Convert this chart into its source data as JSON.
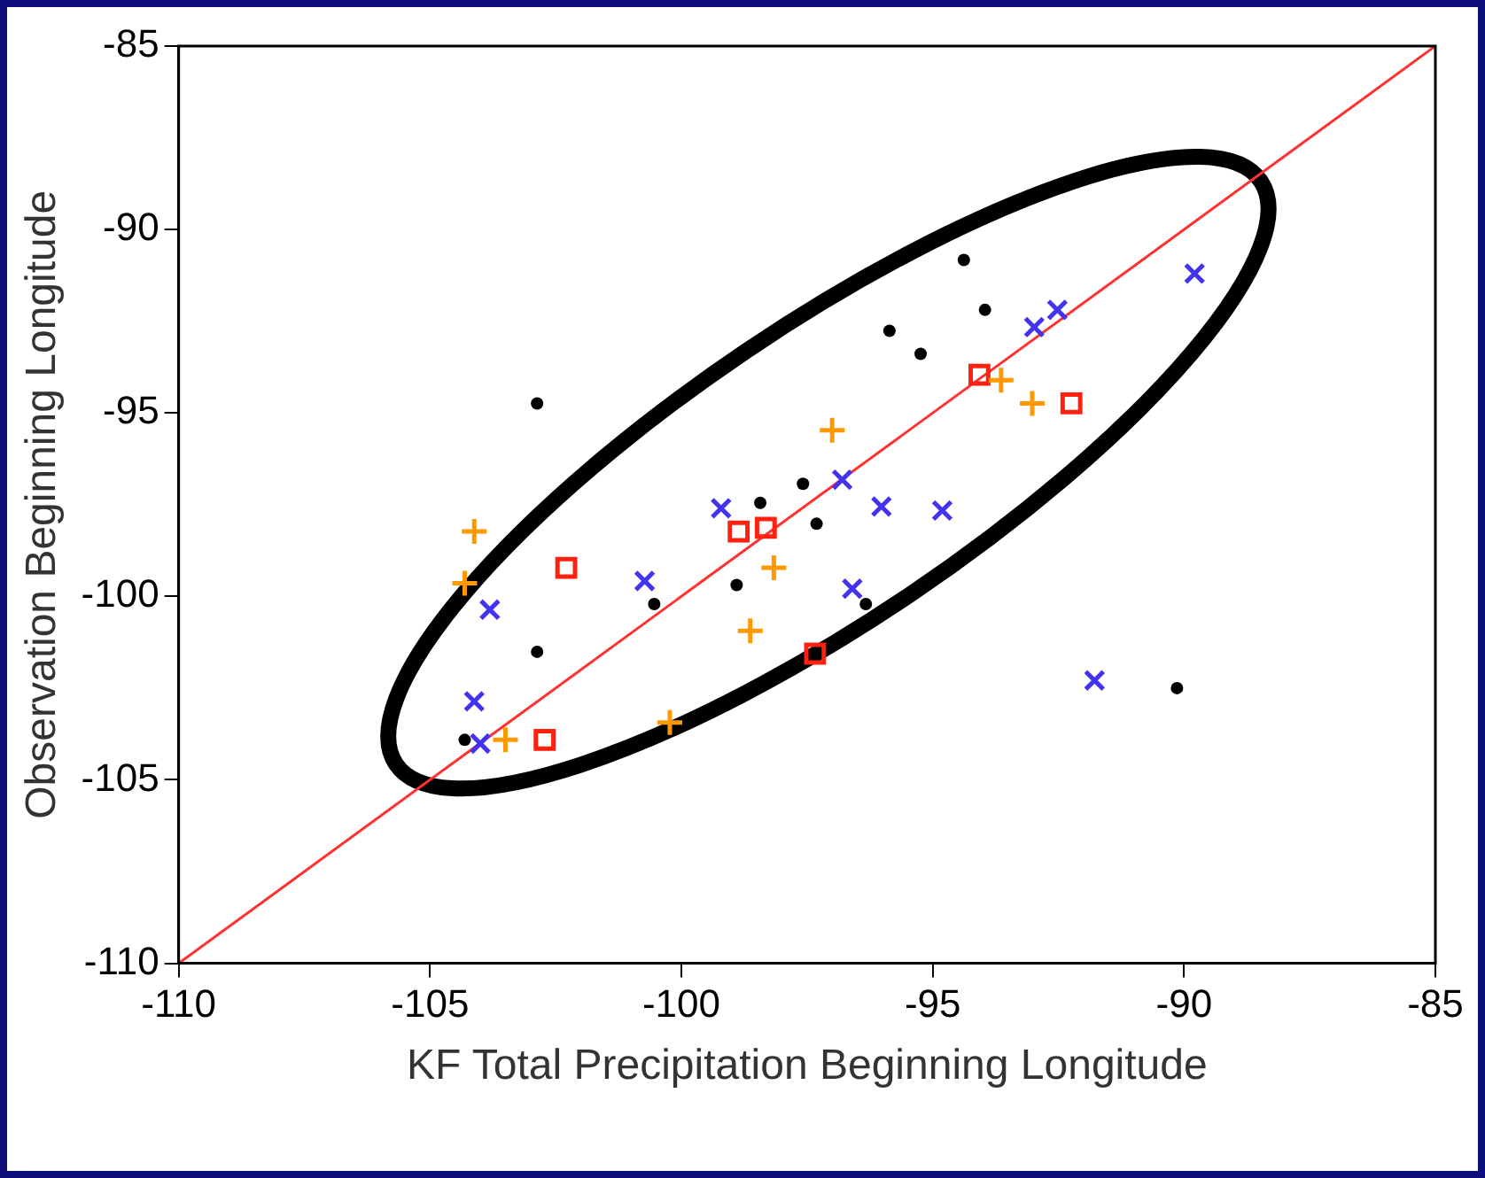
{
  "chart_data": {
    "type": "scatter",
    "xlabel": "KF Total Precipitation Beginning Longitude",
    "ylabel": "Observation Beginning Longitude",
    "xlim": [
      -110,
      -85
    ],
    "ylim": [
      -110,
      -85
    ],
    "xticks": [
      -110,
      -105,
      -100,
      -95,
      -90,
      -85
    ],
    "yticks": [
      -110,
      -105,
      -100,
      -95,
      -90,
      -85
    ],
    "grid": false,
    "legend": false,
    "series": [
      {
        "type": "line",
        "color": "#ff3030",
        "marker": "none",
        "line_style": "solid",
        "x": [
          -110,
          -85
        ],
        "values": [
          -110,
          -85
        ]
      },
      {
        "color": "#000000",
        "marker": "circle",
        "x": [
          -102.87,
          -94.38,
          -93.96,
          -95.86,
          -95.24,
          -97.58,
          -98.43,
          -97.31,
          -98.9,
          -100.54,
          -96.33,
          -102.87,
          -104.31,
          -90.14
        ],
        "values": [
          -94.74,
          -90.83,
          -92.19,
          -92.76,
          -93.39,
          -96.93,
          -97.45,
          -98.02,
          -99.69,
          -100.21,
          -100.21,
          -101.51,
          -103.91,
          -102.5
        ]
      },
      {
        "color": "#4433ee",
        "marker": "cross",
        "x": [
          -99.21,
          -96.8,
          -96.02,
          -94.81,
          -100.73,
          -103.81,
          -96.6,
          -104.12,
          -104.0,
          -89.79,
          -92.52,
          -92.98,
          -91.78
        ],
        "values": [
          -97.6,
          -96.82,
          -97.55,
          -97.66,
          -99.58,
          -100.36,
          -99.79,
          -102.86,
          -104.01,
          -91.2,
          -92.19,
          -92.66,
          -102.29
        ]
      },
      {
        "color": "#ff9900",
        "marker": "plus",
        "x": [
          -97.0,
          -104.12,
          -104.31,
          -98.16,
          -98.63,
          -100.23,
          -103.5,
          -93.64,
          -93.02
        ],
        "values": [
          -95.47,
          -98.23,
          -99.64,
          -99.22,
          -100.94,
          -103.44,
          -103.91,
          -94.11,
          -94.74
        ]
      },
      {
        "color": "#ff2010",
        "marker": "square",
        "x": [
          -102.29,
          -98.86,
          -98.32,
          -97.34,
          -102.72,
          -94.07,
          -92.24
        ],
        "values": [
          -99.22,
          -98.23,
          -98.13,
          -101.56,
          -103.91,
          -93.96,
          -94.74
        ]
      }
    ]
  }
}
